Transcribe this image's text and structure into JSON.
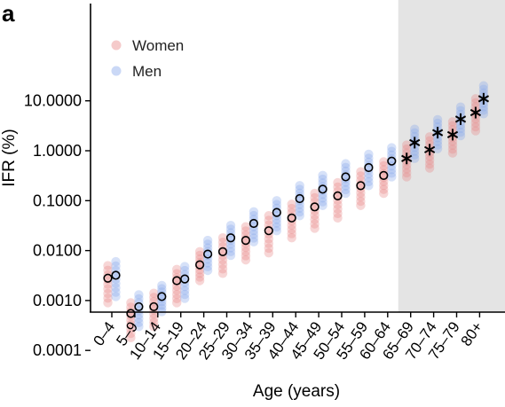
{
  "panel_label": "a",
  "chart_data": {
    "type": "scatter",
    "title": "",
    "xlabel": "Age (years)",
    "ylabel": "IFR (%)",
    "yscale": "log",
    "ylim": [
      0.0001,
      30
    ],
    "yticks": [
      0.0001,
      0.001,
      0.01,
      0.1,
      1,
      10
    ],
    "ytick_labels": [
      "0.0001",
      "0.0010",
      "0.0100",
      "0.1000",
      "1.0000",
      "10.0000"
    ],
    "categories": [
      "0–4",
      "5–9",
      "10–14",
      "15–19",
      "20–24",
      "25–29",
      "30–34",
      "35–39",
      "40–44",
      "45–49",
      "50–54",
      "55–59",
      "60–64",
      "65–69",
      "70–74",
      "75–79",
      "80+"
    ],
    "shaded_region": {
      "from": "65–69",
      "to": "80+",
      "color": "#e4e4e4"
    },
    "legend": {
      "position": "top-left",
      "entries": [
        "Women",
        "Men"
      ]
    },
    "colors": {
      "women": "#e98a8a",
      "men": "#8aa8ea"
    },
    "series": [
      {
        "name": "Women",
        "estimates": [
          0.0028,
          0.00055,
          0.00075,
          0.0025,
          0.0052,
          0.0095,
          0.016,
          0.025,
          0.045,
          0.075,
          0.125,
          0.2,
          0.32,
          0.7,
          1.05,
          2.1,
          5.8
        ],
        "range": [
          [
            0.0009,
            0.005
          ],
          [
            0.00018,
            0.0009
          ],
          [
            0.0003,
            0.0014
          ],
          [
            0.0009,
            0.0042
          ],
          [
            0.0025,
            0.0095
          ],
          [
            0.0035,
            0.018
          ],
          [
            0.0065,
            0.03
          ],
          [
            0.009,
            0.05
          ],
          [
            0.018,
            0.085
          ],
          [
            0.028,
            0.14
          ],
          [
            0.045,
            0.23
          ],
          [
            0.08,
            0.38
          ],
          [
            0.14,
            0.6
          ],
          [
            0.3,
            1.3
          ],
          [
            0.45,
            1.9
          ],
          [
            0.9,
            3.8
          ],
          [
            2.5,
            11
          ]
        ]
      },
      {
        "name": "Men",
        "estimates": [
          0.0032,
          0.00075,
          0.0012,
          0.0027,
          0.0085,
          0.018,
          0.035,
          0.058,
          0.11,
          0.17,
          0.3,
          0.46,
          0.62,
          1.45,
          2.3,
          4.3,
          11
        ],
        "range": [
          [
            0.0012,
            0.006
          ],
          [
            0.0003,
            0.0013
          ],
          [
            0.0006,
            0.002
          ],
          [
            0.0011,
            0.0048
          ],
          [
            0.004,
            0.016
          ],
          [
            0.008,
            0.032
          ],
          [
            0.015,
            0.06
          ],
          [
            0.025,
            0.1
          ],
          [
            0.05,
            0.2
          ],
          [
            0.08,
            0.32
          ],
          [
            0.14,
            0.55
          ],
          [
            0.2,
            0.85
          ],
          [
            0.3,
            1.15
          ],
          [
            0.7,
            2.7
          ],
          [
            1.1,
            4.2
          ],
          [
            2.0,
            7.5
          ],
          [
            5.5,
            20
          ]
        ]
      }
    ]
  }
}
